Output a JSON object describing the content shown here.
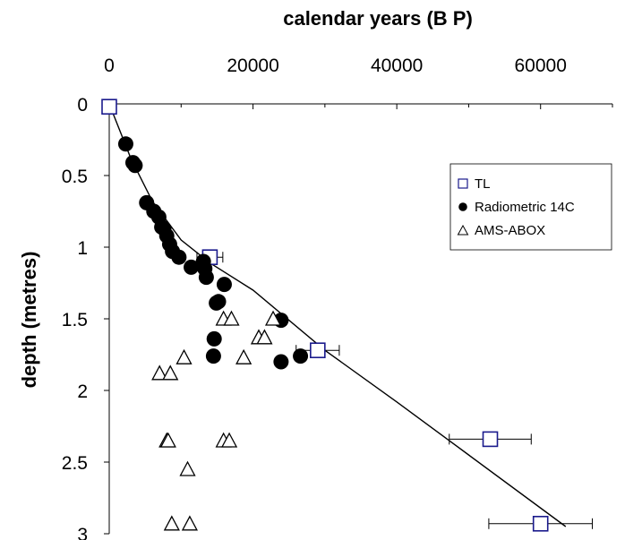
{
  "chart_data": {
    "type": "scatter",
    "xlabel": "calendar years (B P)",
    "ylabel": "depth (metres)",
    "xlim": [
      0,
      70000
    ],
    "ylim": [
      0,
      3
    ],
    "y_axis_inverted": true,
    "x_axis_position": "top",
    "x_ticks": [
      0,
      20000,
      40000,
      60000
    ],
    "y_ticks": [
      0,
      0.5,
      1,
      1.5,
      2,
      2.5,
      3
    ],
    "x_tick_labels": [
      "0",
      "20000",
      "40000",
      "60000"
    ],
    "y_tick_labels": [
      "0",
      "0.5",
      "1",
      "1.5",
      "2",
      "2.5",
      "3"
    ],
    "grid": false,
    "legend_position": "right",
    "colors": {
      "tl": "#1a1a8c",
      "axis": "#000000"
    },
    "series": [
      {
        "name": "TL",
        "marker": "open-square",
        "points": [
          {
            "x": 0,
            "y": 0.02
          },
          {
            "x": 14000,
            "y": 1.07,
            "xerr": 1800
          },
          {
            "x": 29000,
            "y": 1.72,
            "xerr": 3000
          },
          {
            "x": 53000,
            "y": 2.34,
            "xerr": 5700
          },
          {
            "x": 60000,
            "y": 2.93,
            "xerr": 7200
          }
        ]
      },
      {
        "name": "Radiometric 14C",
        "marker": "filled-circle",
        "points": [
          {
            "x": 2300,
            "y": 0.28
          },
          {
            "x": 3300,
            "y": 0.41
          },
          {
            "x": 3600,
            "y": 0.43
          },
          {
            "x": 5200,
            "y": 0.69
          },
          {
            "x": 6200,
            "y": 0.75
          },
          {
            "x": 6900,
            "y": 0.79
          },
          {
            "x": 7300,
            "y": 0.86
          },
          {
            "x": 7600,
            "y": 0.87
          },
          {
            "x": 8000,
            "y": 0.92
          },
          {
            "x": 8400,
            "y": 0.98
          },
          {
            "x": 8800,
            "y": 1.03
          },
          {
            "x": 9700,
            "y": 1.07
          },
          {
            "x": 11400,
            "y": 1.14
          },
          {
            "x": 13100,
            "y": 1.1
          },
          {
            "x": 13300,
            "y": 1.15
          },
          {
            "x": 13500,
            "y": 1.21
          },
          {
            "x": 16000,
            "y": 1.26
          },
          {
            "x": 15200,
            "y": 1.38
          },
          {
            "x": 14900,
            "y": 1.39
          },
          {
            "x": 14600,
            "y": 1.64
          },
          {
            "x": 14500,
            "y": 1.76
          },
          {
            "x": 23900,
            "y": 1.51
          },
          {
            "x": 23900,
            "y": 1.8
          },
          {
            "x": 26600,
            "y": 1.76
          }
        ]
      },
      {
        "name": "AMS-ABOX",
        "marker": "open-triangle",
        "points": [
          {
            "x": 15900,
            "y": 1.5
          },
          {
            "x": 17000,
            "y": 1.5
          },
          {
            "x": 22800,
            "y": 1.5
          },
          {
            "x": 20800,
            "y": 1.63
          },
          {
            "x": 21600,
            "y": 1.63
          },
          {
            "x": 10400,
            "y": 1.77
          },
          {
            "x": 18700,
            "y": 1.77
          },
          {
            "x": 7000,
            "y": 1.88
          },
          {
            "x": 8500,
            "y": 1.88
          },
          {
            "x": 8000,
            "y": 2.35
          },
          {
            "x": 8200,
            "y": 2.35
          },
          {
            "x": 15900,
            "y": 2.35
          },
          {
            "x": 16700,
            "y": 2.35
          },
          {
            "x": 10900,
            "y": 2.55
          },
          {
            "x": 8700,
            "y": 2.93
          },
          {
            "x": 11200,
            "y": 2.93
          }
        ]
      }
    ],
    "fit_line": {
      "points": [
        {
          "x": 0,
          "y": 0
        },
        {
          "x": 3000,
          "y": 0.38
        },
        {
          "x": 6000,
          "y": 0.68
        },
        {
          "x": 10000,
          "y": 0.95
        },
        {
          "x": 14000,
          "y": 1.11
        },
        {
          "x": 20000,
          "y": 1.3
        },
        {
          "x": 30000,
          "y": 1.72
        },
        {
          "x": 40000,
          "y": 2.08
        },
        {
          "x": 50000,
          "y": 2.45
        },
        {
          "x": 63500,
          "y": 2.95
        }
      ]
    }
  }
}
